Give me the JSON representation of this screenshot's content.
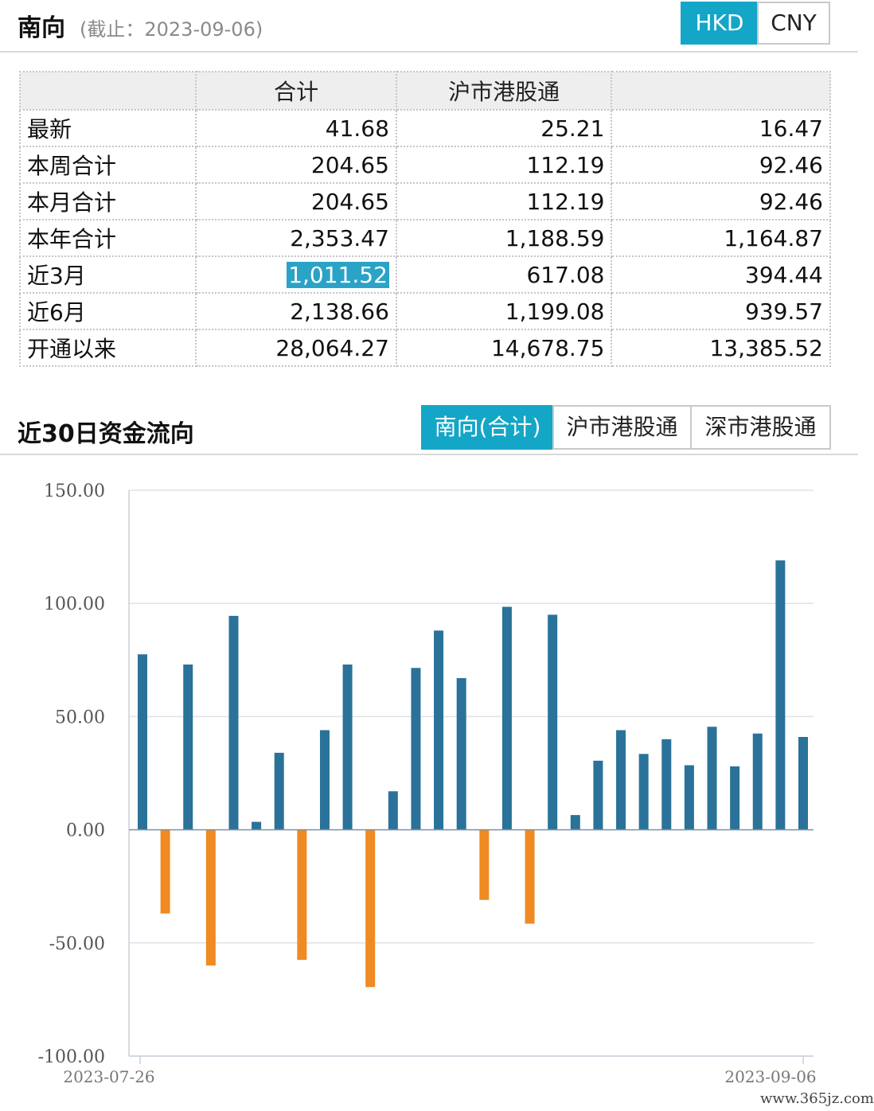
{
  "header": {
    "title": "南向",
    "subtitle": "(截止：2023-09-06)",
    "currency_hkd": "HKD",
    "currency_cny": "CNY"
  },
  "table": {
    "headers": [
      "",
      "合计",
      "沪市港股通",
      ""
    ],
    "rows": [
      [
        "最新",
        "41.68",
        "25.21",
        "16.47"
      ],
      [
        "本周合计",
        "204.65",
        "112.19",
        "92.46"
      ],
      [
        "本月合计",
        "204.65",
        "112.19",
        "92.46"
      ],
      [
        "本年合计",
        "2,353.47",
        "1,188.59",
        "1,164.87"
      ],
      [
        "近3月",
        "1,011.52",
        "617.08",
        "394.44"
      ],
      [
        "近6月",
        "2,138.66",
        "1,199.08",
        "939.57"
      ],
      [
        "开通以来",
        "28,064.27",
        "14,678.75",
        "13,385.52"
      ]
    ]
  },
  "section": {
    "title": "近30日资金流向",
    "tabs": [
      "南向(合计)",
      "沪市港股通",
      "深市港股通"
    ]
  },
  "colors": {
    "accent": "#14a6c7",
    "positive_bar": "#2a7299",
    "negative_bar": "#ef8b22"
  },
  "chart_data": {
    "type": "bar",
    "ylim": [
      -100,
      150
    ],
    "yticks": [
      "150.00",
      "100.00",
      "50.00",
      "0.00",
      "-50.00",
      "-100.00"
    ],
    "x_first_label": "2023-07-26",
    "x_last_label": "2023-09-06",
    "values": [
      77.5,
      -37,
      73,
      -60,
      94.5,
      3.5,
      34,
      -57.5,
      44,
      73,
      -69.5,
      17,
      71.5,
      88,
      67,
      -31,
      98.5,
      -41.5,
      95,
      6.5,
      30.5,
      44,
      33.5,
      40,
      28.5,
      45.5,
      28,
      42.5,
      119,
      41
    ]
  },
  "watermark": "www.365jz.com"
}
